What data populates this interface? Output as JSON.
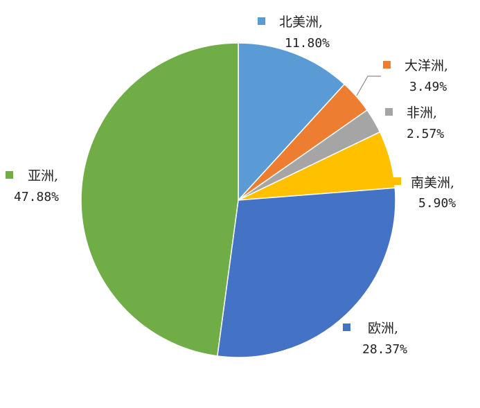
{
  "chart_data": {
    "type": "pie",
    "categories": [
      "北美洲",
      "大洋洲",
      "非洲",
      "南美洲",
      "欧洲",
      "亚洲"
    ],
    "values": [
      11.8,
      3.49,
      2.57,
      5.9,
      28.37,
      47.88
    ],
    "labels": [
      {
        "name": "北美洲,",
        "value": "11.80%"
      },
      {
        "name": "大洋洲,",
        "value": "3.49%"
      },
      {
        "name": "非洲,",
        "value": "2.57%"
      },
      {
        "name": "南美洲,",
        "value": "5.90%"
      },
      {
        "name": "欧洲,",
        "value": "28.37%"
      },
      {
        "name": "亚洲,",
        "value": "47.88%"
      }
    ],
    "colors": [
      "#5b9bd5",
      "#ed7d31",
      "#a5a5a5",
      "#ffc000",
      "#4472c4",
      "#70ad47"
    ],
    "start": "12 o'clock",
    "direction": "clockwise"
  }
}
